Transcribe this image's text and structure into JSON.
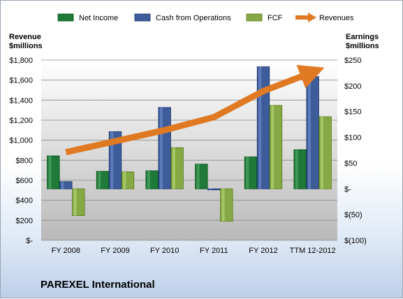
{
  "company_name": "PAREXEL International",
  "chart_data": {
    "type": "bar",
    "categories": [
      "FY 2008",
      "FY 2009",
      "FY 2010",
      "FY 2011",
      "FY 2012",
      "TTM 12-2012"
    ],
    "series": [
      {
        "name": "Net Income",
        "axis": "right",
        "color": "#1f7a3a",
        "values": [
          64,
          34,
          35,
          48,
          62,
          76
        ]
      },
      {
        "name": "Cash from Operations",
        "axis": "right",
        "color": "#3e5c9a",
        "values": [
          14,
          111,
          158,
          -2,
          237,
          218
        ]
      },
      {
        "name": "FCF",
        "axis": "right",
        "color": "#86a845",
        "values": [
          -52,
          33,
          80,
          -63,
          162,
          140
        ]
      },
      {
        "name": "Revenues",
        "axis": "left",
        "type": "line",
        "color": "#e07a22",
        "values": [
          880,
          990,
          1100,
          1230,
          1490,
          1680
        ]
      }
    ],
    "left_axis": {
      "title_lines": [
        "Revenue",
        "$millions"
      ],
      "ylim": [
        0,
        1800
      ],
      "ticks": [
        0,
        200,
        400,
        600,
        800,
        1000,
        1200,
        1400,
        1600,
        1800
      ],
      "tick_labels": [
        "$-",
        "$200",
        "$400",
        "$600",
        "$800",
        "$1,000",
        "$1,200",
        "$1,400",
        "$1,600",
        "$1,800"
      ]
    },
    "right_axis": {
      "title_lines": [
        "Earnings",
        "$millions"
      ],
      "ylim": [
        -100,
        250
      ],
      "ticks": [
        -100,
        -50,
        0,
        50,
        100,
        150,
        200,
        250
      ],
      "tick_labels": [
        "$(100)",
        "$(50)",
        "$-",
        "$50",
        "$100",
        "$150",
        "$200",
        "$250"
      ]
    },
    "legend_position": "top",
    "grid": true
  }
}
